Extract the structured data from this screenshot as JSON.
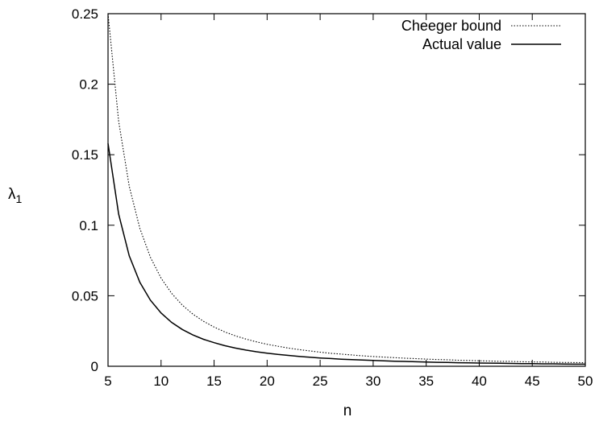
{
  "chart_data": {
    "type": "line",
    "title": "",
    "xlabel": "n",
    "ylabel": "λ",
    "ylabel_subscript": "1",
    "xlim": [
      5,
      50
    ],
    "ylim": [
      0,
      0.25
    ],
    "x_ticks": [
      5,
      10,
      15,
      20,
      25,
      30,
      35,
      40,
      45,
      50
    ],
    "y_ticks": [
      0,
      0.05,
      0.1,
      0.15,
      0.2,
      0.25
    ],
    "x_tick_labels": [
      "5",
      "10",
      "15",
      "20",
      "25",
      "30",
      "35",
      "40",
      "45",
      "50"
    ],
    "y_tick_labels": [
      "0",
      "0.05",
      "0.1",
      "0.15",
      "0.2",
      "0.25"
    ],
    "grid": false,
    "legend_position": "top-right",
    "x": [
      5,
      6,
      7,
      8,
      9,
      10,
      11,
      12,
      13,
      14,
      15,
      16,
      17,
      18,
      19,
      20,
      21,
      22,
      23,
      24,
      25,
      26,
      27,
      28,
      29,
      30,
      31,
      32,
      33,
      34,
      35,
      36,
      37,
      38,
      39,
      40,
      41,
      42,
      43,
      44,
      45,
      46,
      47,
      48,
      49,
      50
    ],
    "series": [
      {
        "name": "Cheeger bound",
        "style": "dotted",
        "color": "#000000",
        "values": [
          0.25,
          0.1736,
          0.1276,
          0.0977,
          0.0772,
          0.0625,
          0.0517,
          0.0434,
          0.037,
          0.0319,
          0.0278,
          0.0244,
          0.0216,
          0.0193,
          0.0173,
          0.0156,
          0.0142,
          0.0129,
          0.0118,
          0.0109,
          0.01,
          0.0092,
          0.0086,
          0.008,
          0.0074,
          0.0069,
          0.0065,
          0.0061,
          0.0057,
          0.0054,
          0.0051,
          0.0048,
          0.0046,
          0.0043,
          0.0041,
          0.0039,
          0.0037,
          0.0035,
          0.0034,
          0.0032,
          0.0031,
          0.003,
          0.0028,
          0.0027,
          0.0026,
          0.0025
        ]
      },
      {
        "name": "Actual value",
        "style": "solid",
        "color": "#000000",
        "values": [
          0.158,
          0.1078,
          0.0783,
          0.0595,
          0.0468,
          0.0378,
          0.0311,
          0.0261,
          0.0222,
          0.0191,
          0.0167,
          0.0146,
          0.0129,
          0.0115,
          0.0103,
          0.0093,
          0.0084,
          0.0077,
          0.007,
          0.0064,
          0.0059,
          0.0055,
          0.005,
          0.0047,
          0.0044,
          0.0041,
          0.0038,
          0.0036,
          0.0034,
          0.0032,
          0.003,
          0.0028,
          0.0027,
          0.0025,
          0.0024,
          0.0023,
          0.0022,
          0.0021,
          0.002,
          0.0019,
          0.0018,
          0.0017,
          0.0017,
          0.0016,
          0.0015,
          0.0015
        ]
      }
    ]
  }
}
